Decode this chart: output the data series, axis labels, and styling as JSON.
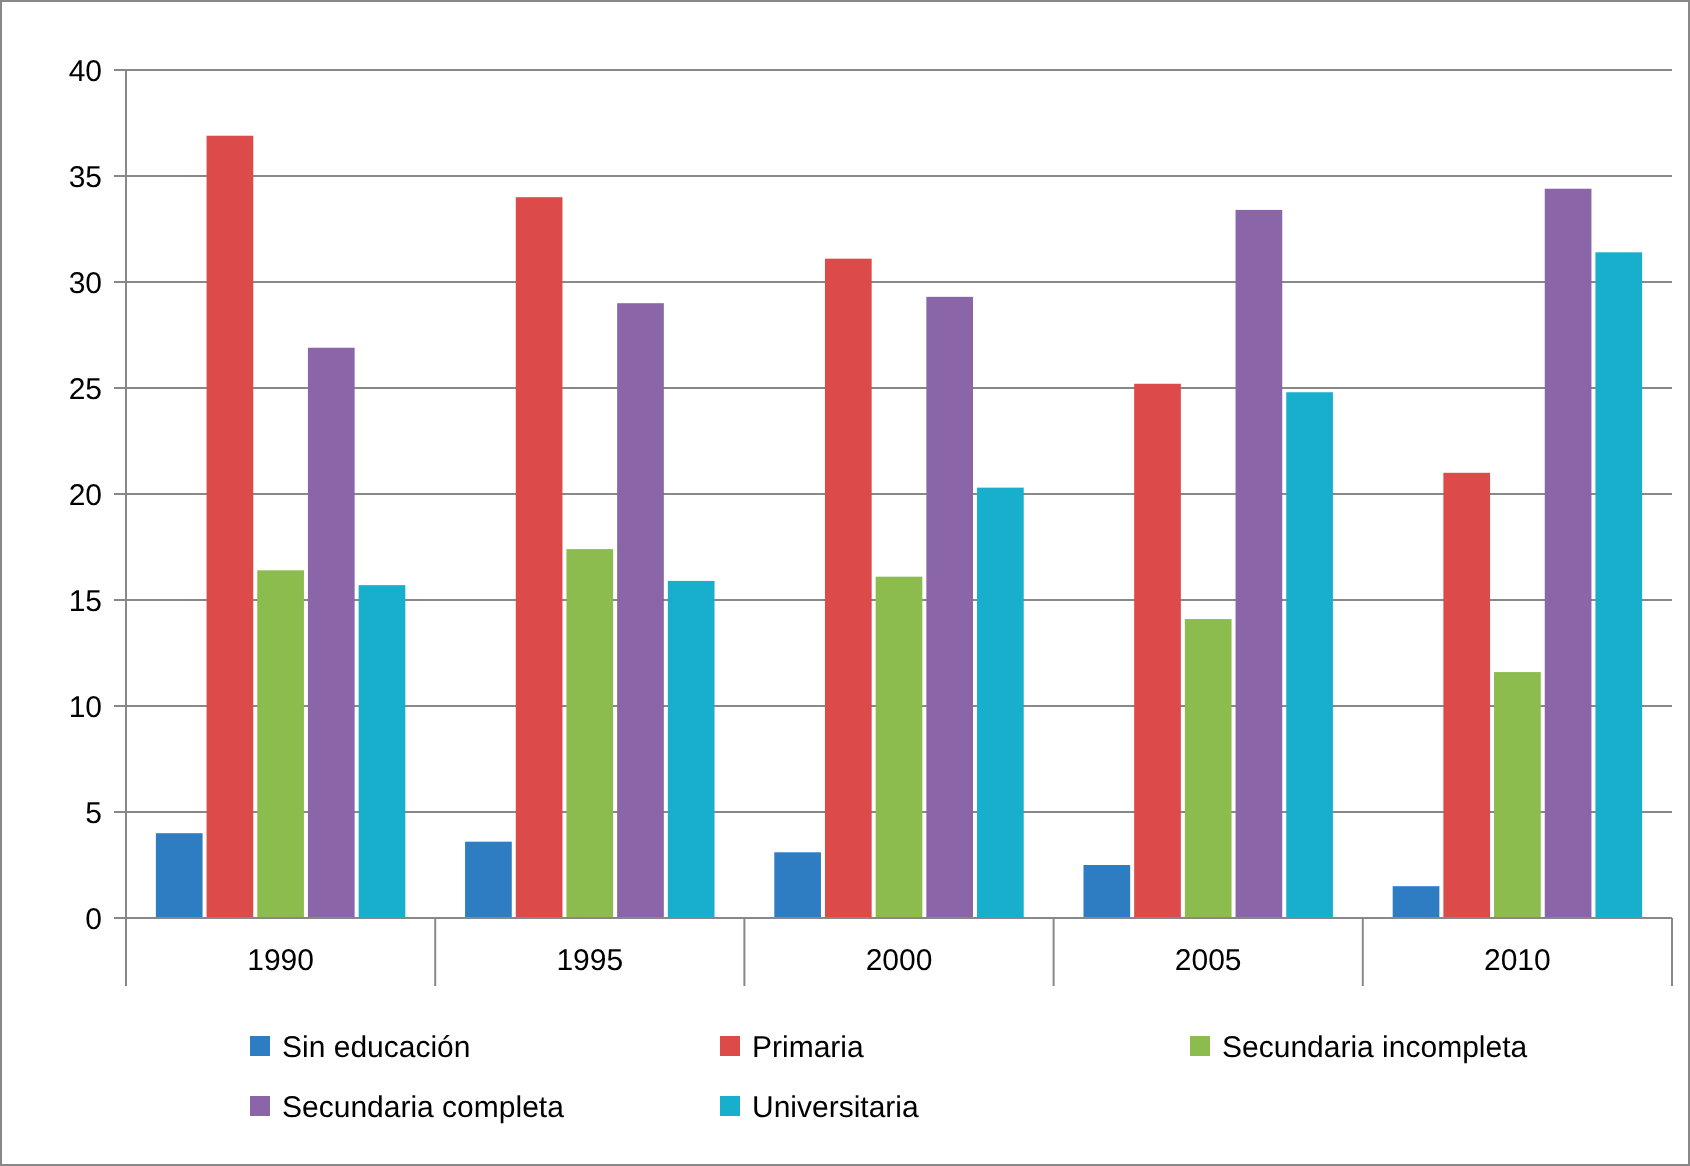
{
  "chart_data": {
    "type": "bar",
    "categories": [
      "1990",
      "1995",
      "2000",
      "2005",
      "2010"
    ],
    "series": [
      {
        "name": "Sin educación",
        "color": "#2e7dc2",
        "values": [
          4.0,
          3.6,
          3.1,
          2.5,
          1.5
        ]
      },
      {
        "name": "Primaria",
        "color": "#dc4a4a",
        "values": [
          36.9,
          34.0,
          31.1,
          25.2,
          21.0
        ]
      },
      {
        "name": "Secundaria incompleta",
        "color": "#8cbb4e",
        "values": [
          16.4,
          17.4,
          16.1,
          14.1,
          11.6
        ]
      },
      {
        "name": "Secundaria completa",
        "color": "#8a66a8",
        "values": [
          26.9,
          29.0,
          29.3,
          33.4,
          34.4
        ]
      },
      {
        "name": "Universitaria",
        "color": "#17afcb",
        "values": [
          15.7,
          15.9,
          20.3,
          24.8,
          31.4
        ]
      }
    ],
    "ylim": [
      0,
      40
    ],
    "yticks": [
      0,
      5,
      10,
      15,
      20,
      25,
      30,
      35,
      40
    ],
    "grid": "y",
    "legend": "bottom"
  }
}
